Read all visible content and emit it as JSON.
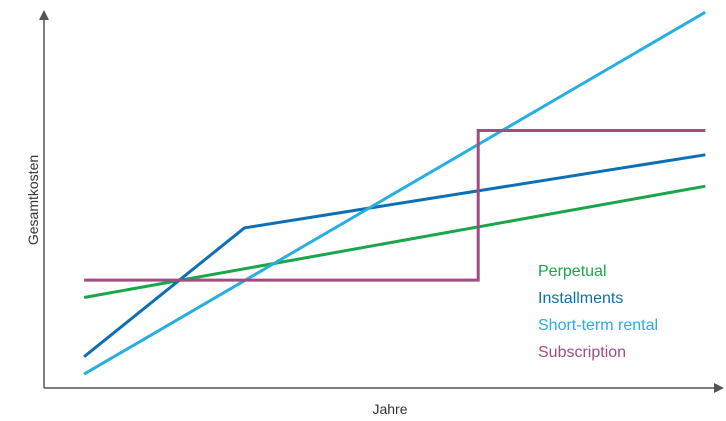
{
  "chart_data": {
    "type": "line",
    "xlabel": "Jahre",
    "ylabel": "Gesamtkosten",
    "xlim": [
      0,
      10
    ],
    "ylim": [
      0,
      10
    ],
    "grid": false,
    "legend_placement": "bottom-right",
    "series": [
      {
        "name": "Perpetual",
        "color": "#1aa64a",
        "points": [
          [
            0.6,
            2.6
          ],
          [
            9.9,
            5.8
          ]
        ]
      },
      {
        "name": "Installments",
        "color": "#0e6fb4",
        "points": [
          [
            0.6,
            0.9
          ],
          [
            3.0,
            4.6
          ],
          [
            9.9,
            6.7
          ]
        ]
      },
      {
        "name": "Short-term rental",
        "color": "#29aee0",
        "points": [
          [
            0.6,
            0.4
          ],
          [
            9.9,
            10.8
          ]
        ]
      },
      {
        "name": "Subscription",
        "color": "#a14d82",
        "points": [
          [
            0.6,
            3.1
          ],
          [
            6.5,
            3.1
          ],
          [
            6.5,
            7.4
          ],
          [
            9.9,
            7.4
          ]
        ]
      }
    ]
  }
}
